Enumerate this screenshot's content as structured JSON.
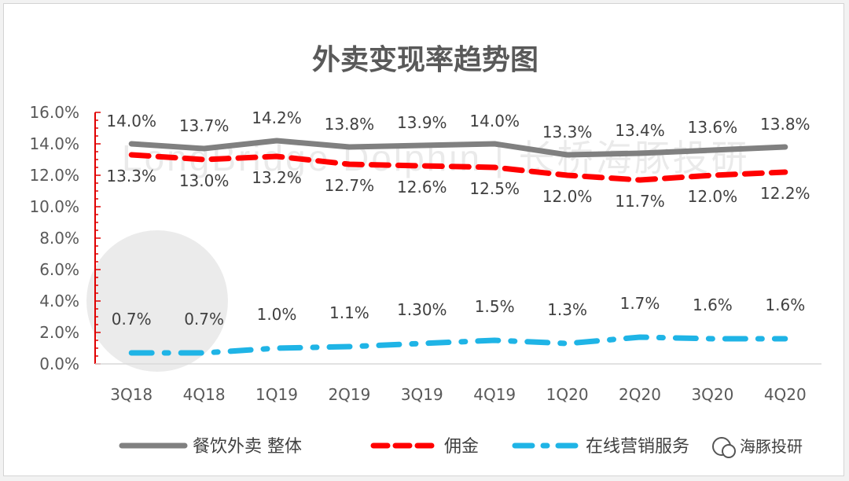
{
  "chart_data": {
    "type": "line",
    "title": "外卖变现率趋势图",
    "categories": [
      "3Q18",
      "4Q18",
      "1Q19",
      "2Q19",
      "3Q19",
      "4Q19",
      "1Q20",
      "2Q20",
      "3Q20",
      "4Q20"
    ],
    "y_ticks": [
      "0.0%",
      "2.0%",
      "4.0%",
      "6.0%",
      "8.0%",
      "10.0%",
      "12.0%",
      "14.0%",
      "16.0%"
    ],
    "ylim": [
      0,
      16
    ],
    "series": [
      {
        "name": "餐饮外卖 整体",
        "values": [
          14.0,
          13.7,
          14.2,
          13.8,
          13.9,
          14.0,
          13.3,
          13.4,
          13.6,
          13.8
        ],
        "labels": [
          "14.0%",
          "13.7%",
          "14.2%",
          "13.8%",
          "13.9%",
          "14.0%",
          "13.3%",
          "13.4%",
          "13.6%",
          "13.8%"
        ],
        "color": "#808080",
        "style": "solid"
      },
      {
        "name": "佣金",
        "values": [
          13.3,
          13.0,
          13.2,
          12.7,
          12.6,
          12.5,
          12.0,
          11.7,
          12.0,
          12.2
        ],
        "labels": [
          "13.3%",
          "13.0%",
          "13.2%",
          "12.7%",
          "12.6%",
          "12.5%",
          "12.0%",
          "11.7%",
          "12.0%",
          "12.2%"
        ],
        "color": "#ff0000",
        "style": "dash"
      },
      {
        "name": "在线营销服务",
        "values": [
          0.7,
          0.7,
          1.0,
          1.1,
          1.3,
          1.5,
          1.3,
          1.7,
          1.6,
          1.6
        ],
        "labels": [
          "0.7%",
          "0.7%",
          "1.0%",
          "1.1%",
          "1.30%",
          "1.5%",
          "1.3%",
          "1.7%",
          "1.6%",
          "1.6%"
        ],
        "color": "#1fb4e6",
        "style": "dashdot"
      }
    ],
    "grid": false,
    "legend_position": "bottom",
    "watermark": "LongBridge Dolphin | 长桥海豚投研",
    "source_badge": "海豚投研"
  }
}
